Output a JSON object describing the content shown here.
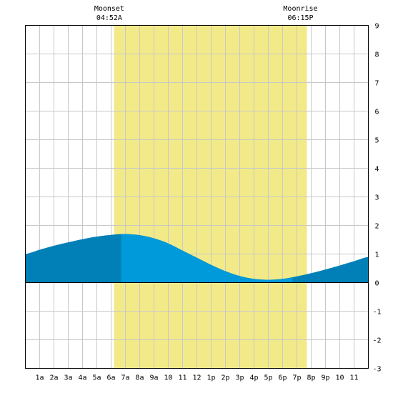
{
  "chart_data": {
    "type": "area",
    "title": "",
    "xlabel": "",
    "ylabel": "",
    "x_unit": "hour of day",
    "xlim": [
      -1.0,
      23.0
    ],
    "ylim": [
      -3,
      9
    ],
    "grid": true,
    "x_ticks": [
      {
        "x": 0,
        "label": "1a"
      },
      {
        "x": 1,
        "label": "2a"
      },
      {
        "x": 2,
        "label": "3a"
      },
      {
        "x": 3,
        "label": "4a"
      },
      {
        "x": 4,
        "label": "5a"
      },
      {
        "x": 5,
        "label": "6a"
      },
      {
        "x": 6,
        "label": "7a"
      },
      {
        "x": 7,
        "label": "8a"
      },
      {
        "x": 8,
        "label": "9a"
      },
      {
        "x": 9,
        "label": "10"
      },
      {
        "x": 10,
        "label": "11"
      },
      {
        "x": 11,
        "label": "12"
      },
      {
        "x": 12,
        "label": "1p"
      },
      {
        "x": 13,
        "label": "2p"
      },
      {
        "x": 14,
        "label": "3p"
      },
      {
        "x": 15,
        "label": "4p"
      },
      {
        "x": 16,
        "label": "5p"
      },
      {
        "x": 17,
        "label": "6p"
      },
      {
        "x": 18,
        "label": "7p"
      },
      {
        "x": 19,
        "label": "8p"
      },
      {
        "x": 20,
        "label": "9p"
      },
      {
        "x": 21,
        "label": "10"
      },
      {
        "x": 22,
        "label": "11"
      }
    ],
    "y_ticks": [
      -3,
      -2,
      -1,
      0,
      1,
      2,
      3,
      4,
      5,
      6,
      7,
      8,
      9
    ],
    "moon_events": [
      {
        "label": "Moonset",
        "time": "04:52A",
        "x": 4.87
      },
      {
        "label": "Moonrise",
        "time": "06:15P",
        "x": 18.25
      }
    ],
    "moon_up_range": [
      5.2,
      18.7
    ],
    "light_tide_range": [
      5.7,
      17.7
    ],
    "series": [
      {
        "x": [
          -1.0,
          0.0,
          1.0,
          2.0,
          3.0,
          4.0,
          5.0,
          5.9,
          7.0,
          8.0,
          9.0,
          10.0,
          11.0,
          12.0,
          13.0,
          14.0,
          15.0,
          16.0,
          17.0,
          18.0,
          19.0,
          20.0,
          21.0,
          22.0,
          23.0
        ],
        "y": [
          1.0,
          1.15,
          1.29,
          1.41,
          1.52,
          1.61,
          1.67,
          1.7,
          1.66,
          1.55,
          1.37,
          1.12,
          0.87,
          0.62,
          0.4,
          0.23,
          0.13,
          0.1,
          0.13,
          0.22,
          0.33,
          0.46,
          0.6,
          0.75,
          0.9
        ]
      }
    ],
    "colors": {
      "moon_up": "#f2ea88",
      "tide_dark": "#0080b6",
      "tide_light": "#0099d9",
      "grid": "#c8c8c8",
      "border": "#000000"
    }
  }
}
